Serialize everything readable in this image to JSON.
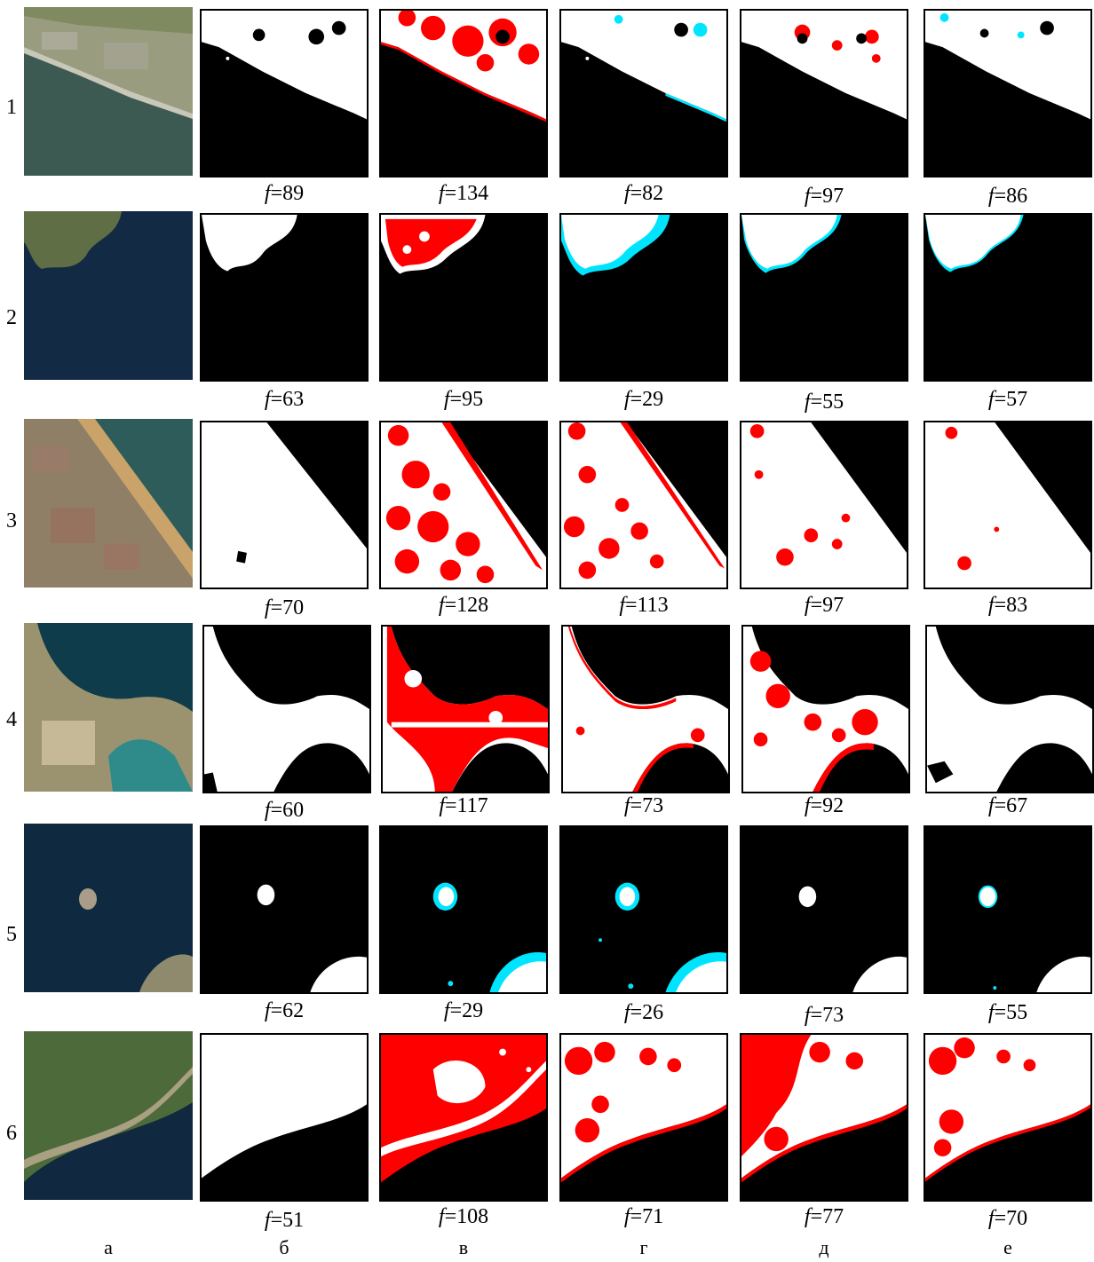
{
  "row_labels": [
    "1",
    "2",
    "3",
    "4",
    "5",
    "6"
  ],
  "col_labels": [
    "а",
    "б",
    "в",
    "г",
    "д",
    "е"
  ],
  "f_prefix": "f",
  "f_values": [
    [
      "=89",
      "=134",
      "=82",
      "=97",
      "=86"
    ],
    [
      "=63",
      "=95",
      "=29",
      "=55",
      "=57"
    ],
    [
      "=70",
      "=128",
      "=113",
      "=97",
      "=83"
    ],
    [
      "=60",
      "=117",
      "=73",
      "=92",
      "=67"
    ],
    [
      "=62",
      "=29",
      "=26",
      "=73",
      "=55"
    ],
    [
      "=51",
      "=108",
      "=71",
      "=77",
      "=70"
    ]
  ],
  "colors": {
    "error_fp": "#ff0000",
    "error_fn": "#00e5ff",
    "water": "#000000",
    "land": "#ffffff"
  }
}
